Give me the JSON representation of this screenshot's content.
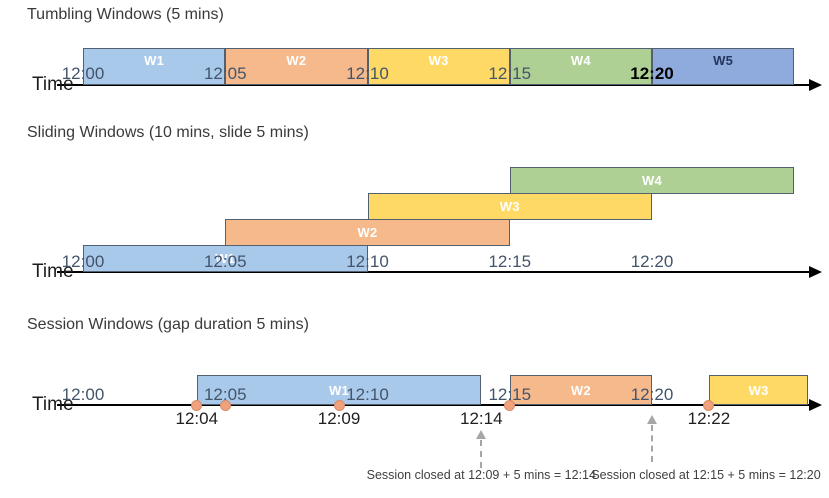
{
  "colors": {
    "bar_border": "#53606F",
    "axis": "#000000",
    "dot_fill": "#F0A17E",
    "dot_border": "#D98C63",
    "annotation_arrow": "#A6A6A6",
    "blue": "#A9C9EA",
    "orange": "#F5B98C",
    "yellow": "#FFD966",
    "green": "#AFD095",
    "periwinkle": "#8FAADC"
  },
  "sections": [
    {
      "id": "tumbling",
      "title": "Tumbling Windows (5 mins)",
      "axis_label": "Time",
      "ticks": [
        {
          "label": "12:00",
          "min": 0
        },
        {
          "label": "12:05",
          "min": 5
        },
        {
          "label": "12:10",
          "min": 10
        },
        {
          "label": "12:15",
          "min": 15
        },
        {
          "label": "12:20",
          "min": 20,
          "emphasis": true
        }
      ],
      "windows": [
        {
          "label": "W1",
          "start_min": 0,
          "end_min": 5,
          "fill": "#A9C9EA",
          "text": "#FFFFFF"
        },
        {
          "label": "W2",
          "start_min": 5,
          "end_min": 10,
          "fill": "#F5B98C",
          "text": "#FFFFFF"
        },
        {
          "label": "W3",
          "start_min": 10,
          "end_min": 15,
          "fill": "#FFD966",
          "text": "#FFFFFF"
        },
        {
          "label": "W4",
          "start_min": 15,
          "end_min": 20,
          "fill": "#AFD095",
          "text": "#FFFFFF"
        },
        {
          "label": "W5",
          "start_min": 20,
          "end_min": 25,
          "fill": "#8FAADC",
          "text": "#22375E"
        }
      ]
    },
    {
      "id": "sliding",
      "title": "Sliding Windows (10 mins, slide 5 mins)",
      "axis_label": "Time",
      "ticks": [
        {
          "label": "12:00",
          "min": 0
        },
        {
          "label": "12:05",
          "min": 5
        },
        {
          "label": "12:10",
          "min": 10
        },
        {
          "label": "12:15",
          "min": 15
        },
        {
          "label": "12:20",
          "min": 20
        }
      ],
      "windows": [
        {
          "label": "W1",
          "start_min": 0,
          "end_min": 10,
          "row": 0,
          "fill": "#A9C9EA",
          "text": "#FFFFFF"
        },
        {
          "label": "W2",
          "start_min": 5,
          "end_min": 15,
          "row": 1,
          "fill": "#F5B98C",
          "text": "#FFFFFF"
        },
        {
          "label": "W3",
          "start_min": 10,
          "end_min": 20,
          "row": 2,
          "fill": "#FFD966",
          "text": "#FFFFFF"
        },
        {
          "label": "W4",
          "start_min": 15,
          "end_min": 25,
          "row": 3,
          "fill": "#AFD095",
          "text": "#FFFFFF"
        }
      ]
    },
    {
      "id": "session",
      "title": "Session Windows (gap duration 5 mins)",
      "axis_label": "Time",
      "ticks": [
        {
          "label": "12:00",
          "min": 0
        },
        {
          "label": "12:05",
          "min": 5
        },
        {
          "label": "12:10",
          "min": 10
        },
        {
          "label": "12:15",
          "min": 15
        },
        {
          "label": "12:20",
          "min": 20
        }
      ],
      "windows": [
        {
          "label": "W1",
          "start_min": 4,
          "end_min": 14,
          "fill": "#A9C9EA",
          "text": "#FFFFFF"
        },
        {
          "label": "W2",
          "start_min": 15,
          "end_min": 20,
          "fill": "#F5B98C",
          "text": "#FFFFFF"
        },
        {
          "label": "W3",
          "start_min": 22,
          "end_min": 25.5,
          "fill": "#FFD966",
          "text": "#FFFFFF"
        }
      ],
      "events": [
        {
          "min": 4,
          "label": "12:04"
        },
        {
          "min": 5,
          "label": ""
        },
        {
          "min": 9,
          "label": "12:09"
        },
        {
          "min": 15,
          "label": ""
        },
        {
          "min": 22,
          "label": "12:22"
        }
      ],
      "extra_labels": [
        {
          "label": "12:14",
          "min": 14
        }
      ],
      "annotations": [
        {
          "text": "Session closed at 12:09 + 5 mins = 12:14",
          "arrow_at_min": 14
        },
        {
          "text": "Session closed at 12:15 + 5 mins = 12:20",
          "arrow_at_min": 20
        }
      ]
    }
  ]
}
